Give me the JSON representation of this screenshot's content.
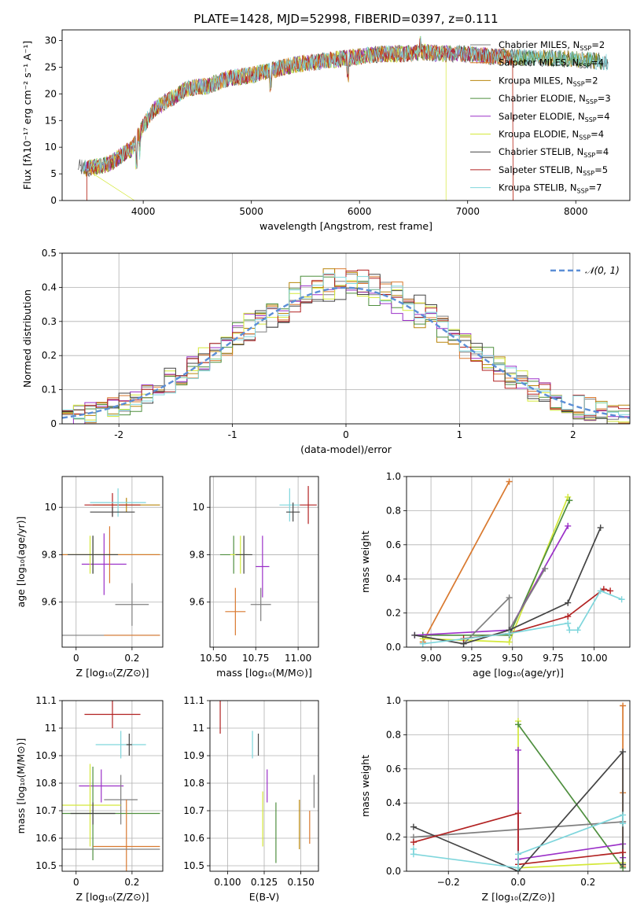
{
  "figure": {
    "title": "PLATE=1428, MJD=52998, FIBERID=0397, z=0.111"
  },
  "models": [
    {
      "name": "Chabrier MILES",
      "nssp": "2",
      "color": "#7f7f7f"
    },
    {
      "name": "Salpeter MILES",
      "nssp": "4",
      "color": "#d9792f"
    },
    {
      "name": "Kroupa MILES",
      "nssp": "2",
      "color": "#b8860b"
    },
    {
      "name": "Chabrier ELODIE",
      "nssp": "3",
      "color": "#4f8f3f"
    },
    {
      "name": "Salpeter ELODIE",
      "nssp": "4",
      "color": "#9b30c8"
    },
    {
      "name": "Kroupa ELODIE",
      "nssp": "4",
      "color": "#d4e83a"
    },
    {
      "name": "Chabrier STELIB",
      "nssp": "4",
      "color": "#444444"
    },
    {
      "name": "Salpeter STELIB",
      "nssp": "5",
      "color": "#b22222"
    },
    {
      "name": "Kroupa STELIB",
      "nssp": "7",
      "color": "#7fd6dc"
    }
  ],
  "chart_data": [
    {
      "id": "spectrum",
      "type": "line",
      "xlabel": "wavelength [Angstrom, rest frame]",
      "ylabel": "Flux [fλ10⁻¹⁷ erg cm⁻² s⁻¹ A⁻¹]",
      "xlim": [
        3250,
        8500
      ],
      "ylim": [
        0,
        32
      ],
      "xticks": [
        4000,
        5000,
        6000,
        7000,
        8000
      ],
      "yticks": [
        0,
        5,
        10,
        15,
        20,
        25,
        30
      ],
      "grid": false,
      "legend": "top-right",
      "continuum": [
        [
          3400,
          6.2
        ],
        [
          3500,
          6.0
        ],
        [
          3600,
          6.5
        ],
        [
          3700,
          7.0
        ],
        [
          3800,
          8.5
        ],
        [
          3900,
          9.8
        ],
        [
          4000,
          14.0
        ],
        [
          4100,
          17.0
        ],
        [
          4200,
          18.5
        ],
        [
          4300,
          19.5
        ],
        [
          4400,
          21.0
        ],
        [
          4600,
          21.5
        ],
        [
          4800,
          23.0
        ],
        [
          5000,
          23.5
        ],
        [
          5200,
          24.5
        ],
        [
          5400,
          25.5
        ],
        [
          5600,
          26.0
        ],
        [
          5800,
          26.5
        ],
        [
          6000,
          27.0
        ],
        [
          6200,
          27.5
        ],
        [
          6400,
          27.5
        ],
        [
          6600,
          27.8
        ],
        [
          6800,
          27.5
        ],
        [
          7000,
          27.5
        ],
        [
          7200,
          27.0
        ],
        [
          7500,
          26.8
        ],
        [
          7800,
          26.7
        ],
        [
          8000,
          26.5
        ],
        [
          8300,
          26.0
        ]
      ]
    },
    {
      "id": "residuals",
      "type": "step",
      "xlabel": "(data-model)/error",
      "ylabel": "Normed distribution",
      "xlim": [
        -2.5,
        2.5
      ],
      "ylim": [
        0,
        0.5
      ],
      "xticks": [
        -2,
        -1,
        0,
        1,
        2
      ],
      "yticks": [
        0.0,
        0.1,
        0.2,
        0.3,
        0.4,
        0.5
      ],
      "grid": true,
      "legend": "top-right",
      "reference": "𝒩(0, 1)"
    },
    {
      "id": "age-vs-Z",
      "type": "errorbar",
      "xlabel": "Z [log₁₀(Z/Z⊙)]",
      "ylabel": "age  [log₁₀(age/yr)]",
      "xlim": [
        -0.05,
        0.31
      ],
      "ylim": [
        9.41,
        10.13
      ],
      "xticks": [
        0.0,
        0.2
      ],
      "yticks": [
        9.6,
        9.8,
        10.0
      ],
      "grid": true,
      "points": [
        {
          "m": 2,
          "x": 0.18,
          "y": 10.01,
          "xerr": 0.12,
          "yerr": 0.03
        },
        {
          "m": 7,
          "x": 0.13,
          "y": 10.01,
          "xerr": 0.1,
          "yerr": 0.05
        },
        {
          "m": 8,
          "x": 0.15,
          "y": 10.02,
          "xerr": 0.1,
          "yerr": 0.06
        },
        {
          "m": 6,
          "x": 0.13,
          "y": 9.98,
          "xerr": 0.08,
          "yerr": 0.02
        },
        {
          "m": 0,
          "x": 0.2,
          "y": 9.59,
          "xerr": 0.06,
          "yerr": 0.09
        },
        {
          "m": 4,
          "x": 0.1,
          "y": 9.76,
          "xerr": 0.08,
          "yerr": 0.13
        },
        {
          "m": 5,
          "x": 0.05,
          "y": 9.8,
          "xerr": 0.25,
          "yerr": 0.08
        },
        {
          "m": 3,
          "x": 0.06,
          "y": 9.8,
          "xerr": 0.24,
          "yerr": 0.08
        },
        {
          "m": 1,
          "x": 0.12,
          "y": 9.8,
          "xerr": 0.18,
          "yerr": 0.12
        },
        {
          "m": 6,
          "x": 0.06,
          "y": 9.8,
          "xerr": 0.09,
          "yerr": 0.08
        },
        {
          "m": 0,
          "x": 0.1,
          "y": 9.46,
          "xerr": 0.2,
          "yerr": 0.0
        },
        {
          "m": 1,
          "x": 0.2,
          "y": 9.46,
          "xerr": 0.1,
          "yerr": 0.0
        }
      ]
    },
    {
      "id": "age-vs-mass",
      "type": "errorbar",
      "xlabel": "mass [log₁₀(M/M⊙)]",
      "ylabel": "",
      "xlim": [
        10.48,
        11.12
      ],
      "ylim": [
        9.41,
        10.13
      ],
      "xticks": [
        10.5,
        10.75,
        11.0
      ],
      "xticklabels": [
        "10.50",
        "10.75",
        "11.00"
      ],
      "yticks": [
        9.6,
        9.8,
        10.0
      ],
      "grid": true,
      "points": [
        {
          "m": 8,
          "x": 10.95,
          "y": 10.01,
          "xerr": 0.06,
          "yerr": 0.07
        },
        {
          "m": 7,
          "x": 11.06,
          "y": 10.01,
          "xerr": 0.05,
          "yerr": 0.08
        },
        {
          "m": 6,
          "x": 10.97,
          "y": 9.98,
          "xerr": 0.04,
          "yerr": 0.04
        },
        {
          "m": 3,
          "x": 10.62,
          "y": 9.8,
          "xerr": 0.08,
          "yerr": 0.08
        },
        {
          "m": 5,
          "x": 10.66,
          "y": 9.8,
          "xerr": 0.06,
          "yerr": 0.08
        },
        {
          "m": 6,
          "x": 10.68,
          "y": 9.8,
          "xerr": 0.05,
          "yerr": 0.08
        },
        {
          "m": 4,
          "x": 10.79,
          "y": 9.75,
          "xerr": 0.04,
          "yerr": 0.13
        },
        {
          "m": 0,
          "x": 10.78,
          "y": 9.59,
          "xerr": 0.06,
          "yerr": 0.07
        },
        {
          "m": 1,
          "x": 10.63,
          "y": 9.56,
          "xerr": 0.06,
          "yerr": 0.1
        }
      ]
    },
    {
      "id": "mass-weight-vs-age",
      "type": "line",
      "xlabel": "age  [log₁₀(age/yr)]",
      "ylabel": "mass weight",
      "xlim": [
        8.85,
        10.22
      ],
      "ylim": [
        0,
        1
      ],
      "xticks": [
        9.0,
        9.25,
        9.5,
        9.75,
        10.0
      ],
      "xticklabels": [
        "9.00",
        "9.25",
        "9.50",
        "9.75",
        "10.00"
      ],
      "yticks": [
        0.0,
        0.2,
        0.4,
        0.6,
        0.8,
        1.0
      ],
      "yticklabels": [
        "0.0",
        "0.2",
        "0.4",
        "0.6",
        "0.8",
        "1.0"
      ],
      "grid": true,
      "series": [
        {
          "m": 1,
          "points": [
            [
              8.95,
              0.03
            ],
            [
              9.48,
              0.97
            ]
          ]
        },
        {
          "m": 5,
          "points": [
            [
              8.95,
              0.05
            ],
            [
              9.48,
              0.03
            ],
            [
              9.84,
              0.88
            ]
          ]
        },
        {
          "m": 3,
          "points": [
            [
              8.95,
              0.07
            ],
            [
              9.48,
              0.07
            ],
            [
              9.85,
              0.86
            ]
          ]
        },
        {
          "m": 4,
          "points": [
            [
              8.9,
              0.07
            ],
            [
              9.48,
              0.1
            ],
            [
              9.84,
              0.71
            ]
          ]
        },
        {
          "m": 0,
          "points": [
            [
              9.2,
              0.02
            ],
            [
              9.48,
              0.29
            ],
            [
              9.48,
              0.1
            ],
            [
              9.7,
              0.46
            ]
          ]
        },
        {
          "m": 6,
          "points": [
            [
              8.9,
              0.07
            ],
            [
              9.2,
              0.02
            ],
            [
              9.48,
              0.1
            ],
            [
              9.84,
              0.26
            ],
            [
              10.04,
              0.7
            ]
          ]
        },
        {
          "m": 7,
          "points": [
            [
              9.2,
              0.05
            ],
            [
              9.48,
              0.08
            ],
            [
              9.84,
              0.18
            ],
            [
              10.06,
              0.34
            ],
            [
              10.1,
              0.33
            ]
          ]
        },
        {
          "m": 8,
          "points": [
            [
              8.95,
              0.02
            ],
            [
              9.48,
              0.08
            ],
            [
              9.84,
              0.14
            ],
            [
              9.85,
              0.1
            ],
            [
              9.9,
              0.1
            ],
            [
              10.04,
              0.33
            ],
            [
              10.17,
              0.28
            ]
          ]
        }
      ]
    },
    {
      "id": "mass-vs-Z",
      "type": "errorbar",
      "xlabel": "Z [log₁₀(Z/Z⊙)]",
      "ylabel": "mass [log₁₀(M/M⊙)]",
      "xlim": [
        -0.05,
        0.31
      ],
      "ylim": [
        10.48,
        11.1
      ],
      "xticks": [
        0.0,
        0.2
      ],
      "yticks": [
        10.5,
        10.6,
        10.7,
        10.8,
        10.9,
        11.0,
        11.1
      ],
      "grid": true,
      "points": [
        {
          "m": 7,
          "x": 0.13,
          "y": 11.05,
          "xerr": 0.1,
          "yerr": 0.05
        },
        {
          "m": 8,
          "x": 0.16,
          "y": 10.94,
          "xerr": 0.09,
          "yerr": 0.05
        },
        {
          "m": 6,
          "x": 0.19,
          "y": 10.94,
          "xerr": 0.01,
          "yerr": 0.04
        },
        {
          "m": 4,
          "x": 0.09,
          "y": 10.79,
          "xerr": 0.08,
          "yerr": 0.06
        },
        {
          "m": 0,
          "x": 0.16,
          "y": 10.74,
          "xerr": 0.06,
          "yerr": 0.09
        },
        {
          "m": 5,
          "x": 0.05,
          "y": 10.72,
          "xerr": 0.11,
          "yerr": 0.15
        },
        {
          "m": 3,
          "x": 0.06,
          "y": 10.69,
          "xerr": 0.24,
          "yerr": 0.17
        },
        {
          "m": 6,
          "x": 0.06,
          "y": 10.69,
          "xerr": 0.08,
          "yerr": 0.04
        },
        {
          "m": 1,
          "x": 0.18,
          "y": 10.57,
          "xerr": 0.12,
          "yerr": 0.17
        },
        {
          "m": 0,
          "x": 0.1,
          "y": 10.56,
          "xerr": 0.2,
          "yerr": 0.0
        }
      ]
    },
    {
      "id": "mass-vs-ebv",
      "type": "errorbar",
      "xlabel": "E(B-V)",
      "ylabel": "",
      "xlim": [
        0.088,
        0.162
      ],
      "ylim": [
        10.48,
        11.1
      ],
      "xticks": [
        0.1,
        0.125,
        0.15
      ],
      "xticklabels": [
        "0.100",
        "0.125",
        "0.150"
      ],
      "yticks": [
        10.5,
        10.6,
        10.7,
        10.8,
        10.9,
        11.0,
        11.1
      ],
      "grid": true,
      "points": [
        {
          "m": 7,
          "x": 0.095,
          "y": 11.05,
          "xerr": 0,
          "yerr": 0.07
        },
        {
          "m": 8,
          "x": 0.117,
          "y": 10.94,
          "xerr": 0,
          "yerr": 0.05
        },
        {
          "m": 6,
          "x": 0.121,
          "y": 10.94,
          "xerr": 0,
          "yerr": 0.04
        },
        {
          "m": 4,
          "x": 0.127,
          "y": 10.79,
          "xerr": 0,
          "yerr": 0.06
        },
        {
          "m": 5,
          "x": 0.124,
          "y": 10.67,
          "xerr": 0,
          "yerr": 0.1
        },
        {
          "m": 3,
          "x": 0.133,
          "y": 10.62,
          "xerr": 0,
          "yerr": 0.11
        },
        {
          "m": 0,
          "x": 0.159,
          "y": 10.77,
          "xerr": 0,
          "yerr": 0.06
        },
        {
          "m": 2,
          "x": 0.149,
          "y": 10.65,
          "xerr": 0,
          "yerr": 0.09
        },
        {
          "m": 1,
          "x": 0.156,
          "y": 10.64,
          "xerr": 0,
          "yerr": 0.06
        }
      ]
    },
    {
      "id": "mass-weight-vs-Z",
      "type": "line",
      "xlabel": "Z [log₁₀(Z/Z⊙)]",
      "ylabel": "mass weight",
      "xlim": [
        -0.32,
        0.32
      ],
      "ylim": [
        0,
        1
      ],
      "xticks": [
        -0.2,
        0.0,
        0.2
      ],
      "xticklabels": [
        "−0.2",
        "0.0",
        "0.2"
      ],
      "yticks": [
        0.0,
        0.2,
        0.4,
        0.6,
        0.8,
        1.0
      ],
      "yticklabels": [
        "0.0",
        "0.2",
        "0.4",
        "0.6",
        "0.8",
        "1.0"
      ],
      "grid": true,
      "series": [
        {
          "m": 1,
          "points": [
            [
              0.3,
              0.97
            ],
            [
              0.3,
              0.46
            ],
            [
              0.3,
              0.03
            ]
          ]
        },
        {
          "m": 5,
          "points": [
            [
              0.0,
              0.88
            ],
            [
              0.0,
              0.02
            ],
            [
              0.3,
              0.05
            ]
          ]
        },
        {
          "m": 3,
          "points": [
            [
              0.0,
              0.86
            ],
            [
              0.3,
              0.02
            ]
          ]
        },
        {
          "m": 4,
          "points": [
            [
              0.0,
              0.71
            ],
            [
              0.0,
              0.07
            ],
            [
              0.3,
              0.16
            ],
            [
              0.3,
              0.08
            ]
          ]
        },
        {
          "m": 0,
          "points": [
            [
              -0.3,
              0.2
            ],
            [
              0.3,
              0.29
            ],
            [
              0.3,
              0.29
            ]
          ]
        },
        {
          "m": 6,
          "points": [
            [
              -0.3,
              0.26
            ],
            [
              0.0,
              0.0
            ],
            [
              0.3,
              0.7
            ],
            [
              0.3,
              0.04
            ]
          ]
        },
        {
          "m": 7,
          "points": [
            [
              -0.3,
              0.17
            ],
            [
              0.0,
              0.34
            ],
            [
              0.0,
              0.04
            ],
            [
              0.3,
              0.11
            ]
          ]
        },
        {
          "m": 8,
          "points": [
            [
              -0.3,
              0.13
            ],
            [
              -0.3,
              0.1
            ],
            [
              0.0,
              0.02
            ],
            [
              0.0,
              0.1
            ],
            [
              0.3,
              0.33
            ],
            [
              0.3,
              0.28
            ]
          ]
        }
      ]
    }
  ]
}
